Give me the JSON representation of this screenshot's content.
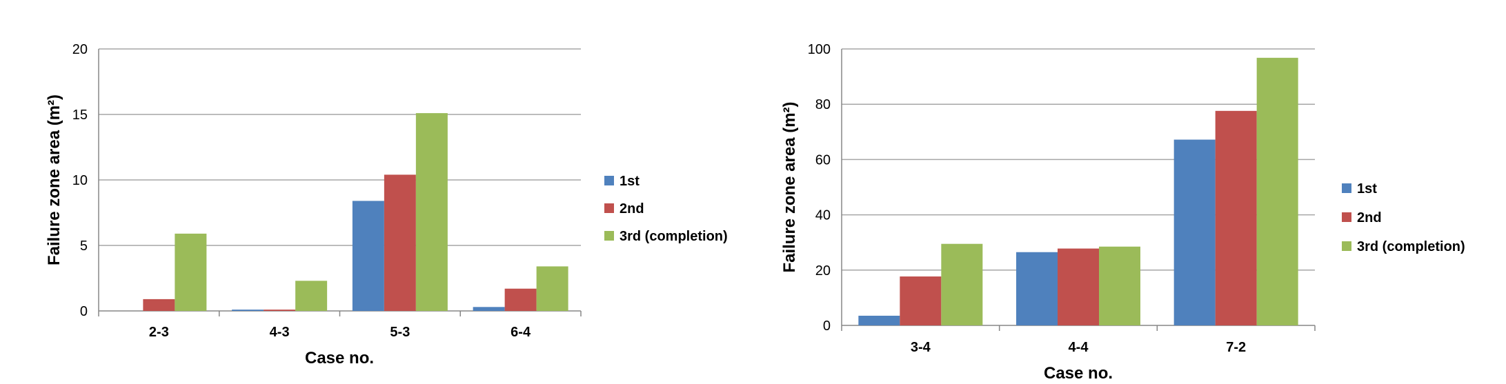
{
  "chart_data": [
    {
      "type": "bar",
      "categories": [
        "2-3",
        "4-3",
        "5-3",
        "6-4"
      ],
      "series": [
        {
          "name": "1st",
          "values": [
            0,
            0.1,
            8.4,
            0.3
          ]
        },
        {
          "name": "2nd",
          "values": [
            0.9,
            0.1,
            10.4,
            1.7
          ]
        },
        {
          "name": "3rd (completion)",
          "values": [
            5.9,
            2.3,
            15.1,
            3.4
          ]
        }
      ],
      "title": "",
      "xlabel": "Case no.",
      "ylabel": "Failure zone area (m²)",
      "ylim": [
        0,
        20
      ],
      "yticks": [
        0,
        5,
        10,
        15,
        20
      ],
      "grid": "horizontal",
      "legend": "right"
    },
    {
      "type": "bar",
      "categories": [
        "3-4",
        "4-4",
        "7-2"
      ],
      "series": [
        {
          "name": "1st",
          "values": [
            3.5,
            26.5,
            67.2
          ]
        },
        {
          "name": "2nd",
          "values": [
            17.7,
            27.8,
            77.6
          ]
        },
        {
          "name": "3rd (completion)",
          "values": [
            29.5,
            28.5,
            96.8
          ]
        }
      ],
      "title": "",
      "xlabel": "Case no.",
      "ylabel": "Failure zone area (m²)",
      "ylim": [
        0,
        100
      ],
      "yticks": [
        0,
        20,
        40,
        60,
        80,
        100
      ],
      "grid": "horizontal",
      "legend": "right"
    }
  ],
  "colors": {
    "series": [
      "#4f81bd",
      "#c0504d",
      "#9bbb59"
    ],
    "grid": "#a6a6a6",
    "axis": "#868686"
  }
}
